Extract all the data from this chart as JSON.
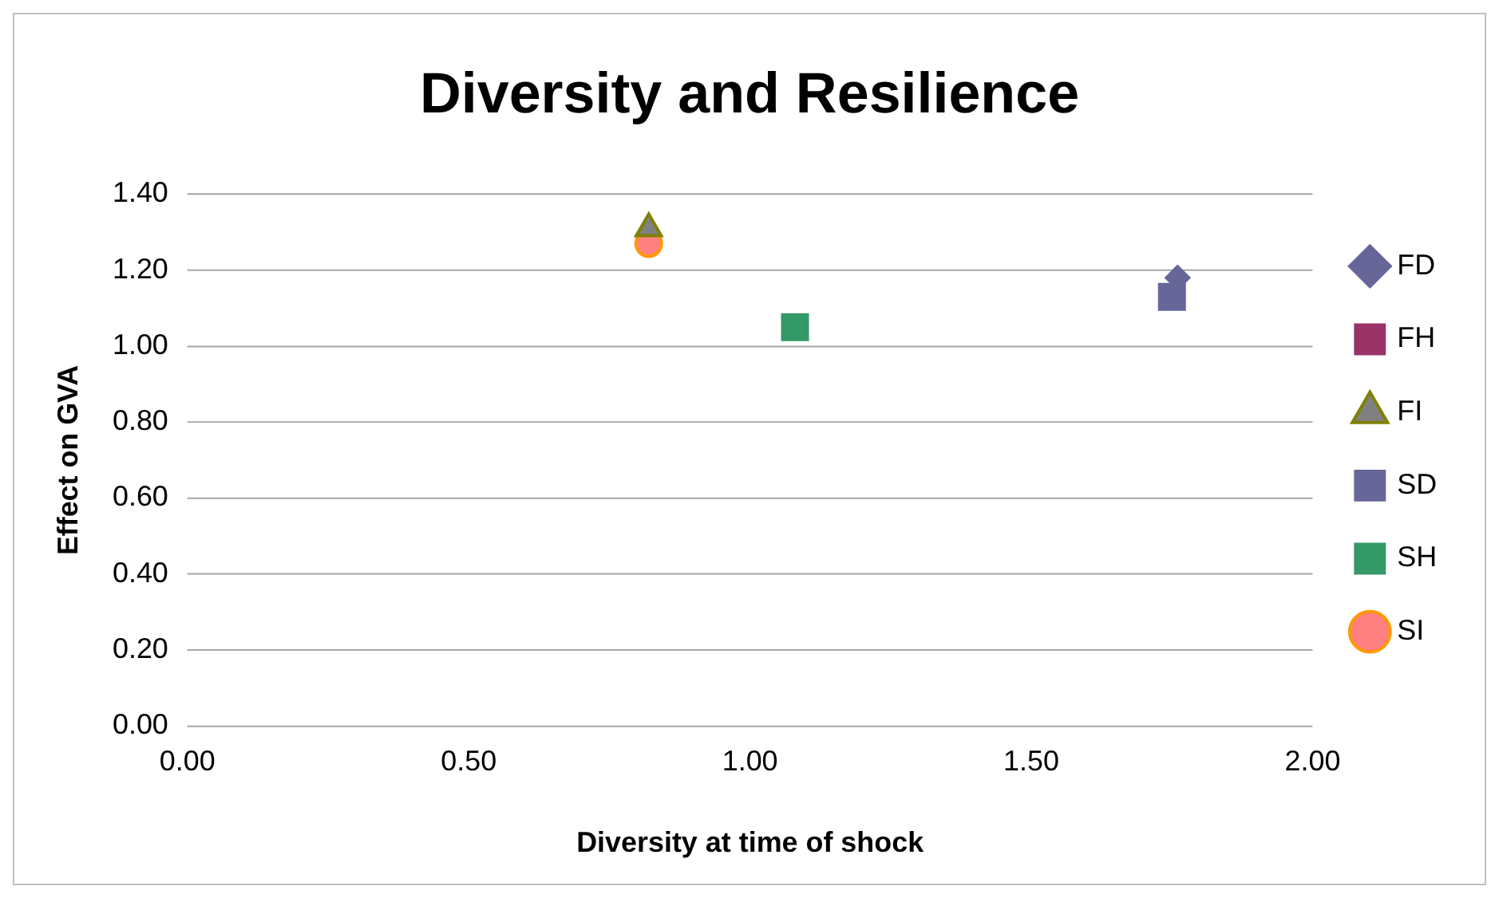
{
  "chart_data": {
    "type": "scatter",
    "title": "Diversity and Resilience",
    "xlabel": "Diversity at time of shock",
    "ylabel": "Effect on GVA",
    "xlim": [
      0,
      2
    ],
    "xticks": [
      {
        "value": 0,
        "label": "0.00"
      },
      {
        "value": 0.5,
        "label": "0.50"
      },
      {
        "value": 1,
        "label": "1.00"
      },
      {
        "value": 1.5,
        "label": "1.50"
      },
      {
        "value": 2,
        "label": "2.00"
      }
    ],
    "ylim": [
      0,
      1.4
    ],
    "yticks": [
      {
        "value": 0,
        "label": "0.00"
      },
      {
        "value": 0.2,
        "label": "0.20"
      },
      {
        "value": 0.4,
        "label": "0.40"
      },
      {
        "value": 0.6,
        "label": "0.60"
      },
      {
        "value": 0.8,
        "label": "0.80"
      },
      {
        "value": 1,
        "label": "1.00"
      },
      {
        "value": 1.2,
        "label": "1.20"
      },
      {
        "value": 1.4,
        "label": "1.40"
      }
    ],
    "grid": "y",
    "legend": "right",
    "series": [
      {
        "name": "FD",
        "color": "#666699",
        "marker": "diamond",
        "x": [
          1.76
        ],
        "values": [
          1.18
        ]
      },
      {
        "name": "FH",
        "color": "#993366",
        "marker": "square",
        "x": [
          null
        ],
        "values": [
          null
        ]
      },
      {
        "name": "FI",
        "color": "#808080",
        "marker": "triangle",
        "x": [
          0.82
        ],
        "values": [
          1.31
        ]
      },
      {
        "name": "SD",
        "color": "#666699",
        "marker": "square",
        "x": [
          1.75
        ],
        "values": [
          1.13
        ]
      },
      {
        "name": "SH",
        "color": "#339966",
        "marker": "square",
        "x": [
          1.08
        ],
        "values": [
          1.05
        ]
      },
      {
        "name": "SI",
        "color": "#ff8080",
        "marker": "circle",
        "x": [
          0.82
        ],
        "values": [
          1.27
        ]
      }
    ]
  }
}
